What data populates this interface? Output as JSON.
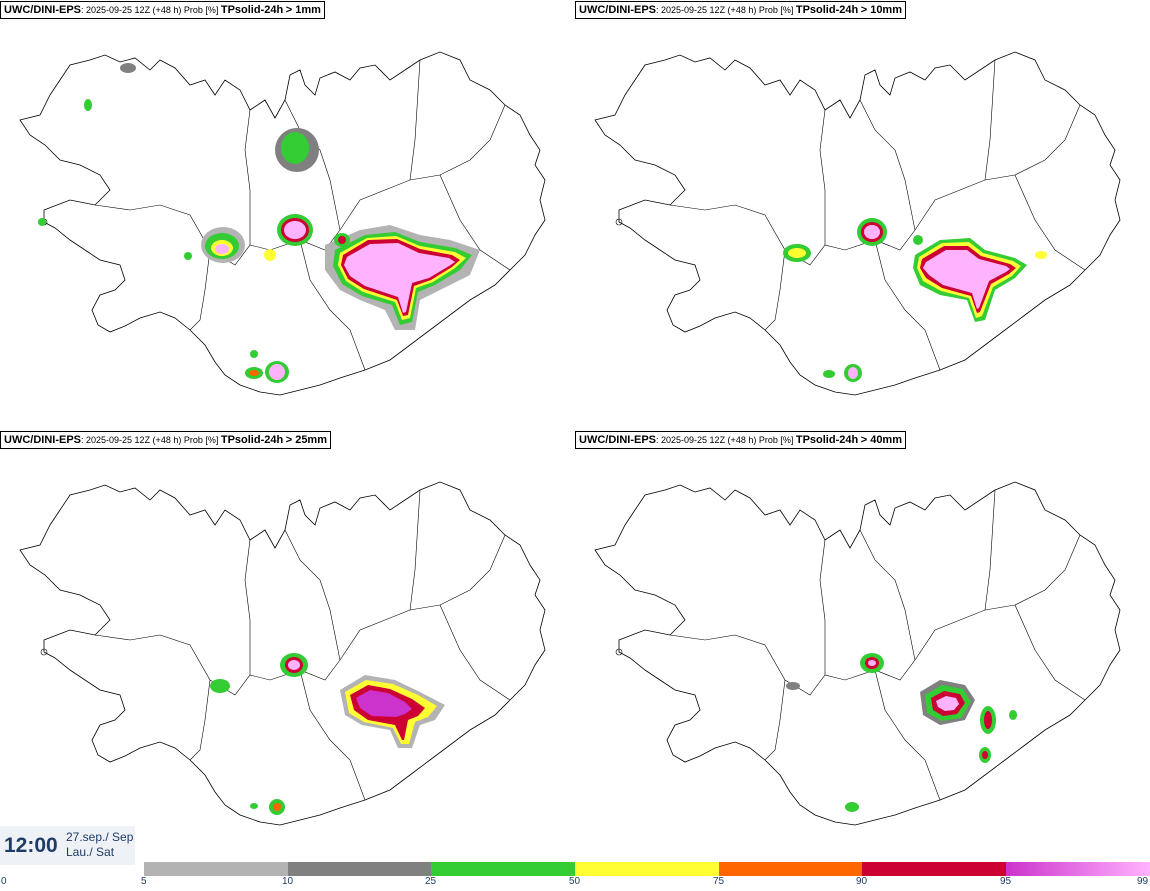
{
  "panels": [
    {
      "model": "UWC/DINI-EPS",
      "info": "2025-09-25 12Z (+48 h) Prob [%]",
      "param": "TPsolid-24h",
      "threshold": "> 1mm"
    },
    {
      "model": "UWC/DINI-EPS",
      "info": "2025-09-25 12Z (+48 h) Prob [%]",
      "param": "TPsolid-24h",
      "threshold": "> 10mm"
    },
    {
      "model": "UWC/DINI-EPS",
      "info": "2025-09-25 12Z (+48 h) Prob [%]",
      "param": "TPsolid-24h",
      "threshold": "> 25mm"
    },
    {
      "model": "UWC/DINI-EPS",
      "info": "2025-09-25 12Z (+48 h) Prob [%]",
      "param": "TPsolid-24h",
      "threshold": "> 40mm"
    }
  ],
  "valid_time": {
    "time": "12:00",
    "date": "27.sep./ Sep",
    "weekday": "Lau./ Sat"
  },
  "legend": {
    "ticks": [
      "0",
      "5",
      "10",
      "25",
      "50",
      "75",
      "90",
      "95",
      "99"
    ],
    "colors": {
      "p5": "#b3b3b3",
      "p10": "#808080",
      "p25": "#33cc33",
      "p50": "#ffff33",
      "p75": "#ff6600",
      "p90": "#cc0033",
      "p95": "#cc33cc",
      "p99": "#ffb3ff"
    }
  },
  "colors": {
    "title_text": "#000000",
    "time_text": "#1e3c66",
    "coast": "#000000"
  }
}
